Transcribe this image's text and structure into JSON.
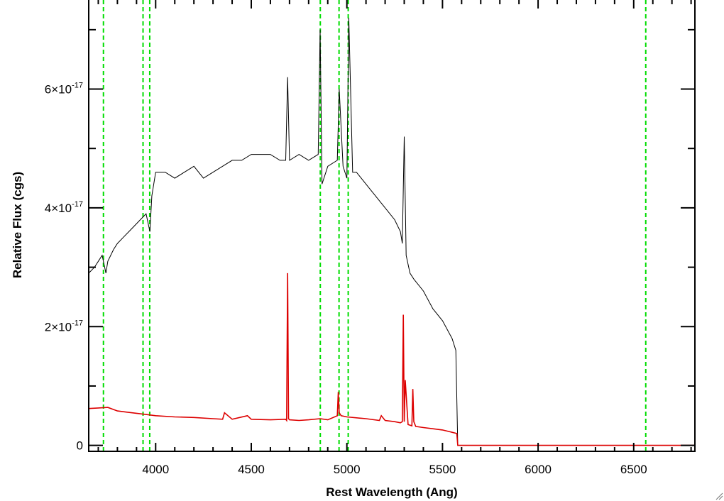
{
  "chart_data": {
    "type": "line",
    "title": "",
    "xlabel": "Rest Wavelength (Ang)",
    "ylabel": "Relative Flux (cgs)",
    "xlim": [
      3650,
      6820
    ],
    "ylim": [
      -1e-18,
      7.5e-17
    ],
    "x_ticks": [
      {
        "value": 4000,
        "label": "4000"
      },
      {
        "value": 4500,
        "label": "4500"
      },
      {
        "value": 5000,
        "label": "5000"
      },
      {
        "value": 5500,
        "label": "5500"
      },
      {
        "value": 6000,
        "label": "6000"
      },
      {
        "value": 6500,
        "label": "6500"
      }
    ],
    "y_ticks": [
      {
        "value": 0,
        "mantissa": "0",
        "exponent": ""
      },
      {
        "value": 2e-17,
        "mantissa": "2×10",
        "exponent": "-17"
      },
      {
        "value": 4e-17,
        "mantissa": "4×10",
        "exponent": "-17"
      },
      {
        "value": 6e-17,
        "mantissa": "6×10",
        "exponent": "-17"
      }
    ],
    "grid": false,
    "series": [
      {
        "color": "#000000",
        "x": [
          3650,
          3680,
          3700,
          3720,
          3740,
          3750,
          3780,
          3800,
          3830,
          3860,
          3890,
          3920,
          3950,
          3970,
          3980,
          4000,
          4050,
          4100,
          4150,
          4200,
          4250,
          4300,
          4350,
          4400,
          4450,
          4500,
          4550,
          4600,
          4650,
          4680,
          4690,
          4700,
          4750,
          4800,
          4850,
          4860,
          4870,
          4900,
          4950,
          4960,
          4980,
          5000,
          5010,
          5030,
          5050,
          5100,
          5150,
          5200,
          5250,
          5280,
          5290,
          5300,
          5310,
          5330,
          5350,
          5400,
          5450,
          5500,
          5550,
          5570,
          5580
        ],
        "y": [
          2.9e-17,
          3e-17,
          3.1e-17,
          3.2e-17,
          2.9e-17,
          3.1e-17,
          3.3e-17,
          3.4e-17,
          3.5e-17,
          3.6e-17,
          3.7e-17,
          3.8e-17,
          3.9e-17,
          3.6e-17,
          4.2e-17,
          4.6e-17,
          4.6e-17,
          4.5e-17,
          4.6e-17,
          4.7e-17,
          4.5e-17,
          4.6e-17,
          4.7e-17,
          4.8e-17,
          4.8e-17,
          4.9e-17,
          4.9e-17,
          4.9e-17,
          4.8e-17,
          4.8e-17,
          6.2e-17,
          4.8e-17,
          4.9e-17,
          4.8e-17,
          4.9e-17,
          7e-17,
          4.4e-17,
          4.7e-17,
          4.8e-17,
          6e-17,
          4.7e-17,
          4.5e-17,
          7.2e-17,
          4.6e-17,
          4.6e-17,
          4.4e-17,
          4.2e-17,
          4e-17,
          3.8e-17,
          3.6e-17,
          3.4e-17,
          5.2e-17,
          3.2e-17,
          2.9e-17,
          2.8e-17,
          2.6e-17,
          2.3e-17,
          2.1e-17,
          1.8e-17,
          1.6e-17,
          0
        ]
      },
      {
        "color": "#dd0000",
        "x": [
          3650,
          3700,
          3750,
          3800,
          3850,
          3900,
          3950,
          4000,
          4100,
          4200,
          4300,
          4350,
          4360,
          4400,
          4480,
          4500,
          4600,
          4680,
          4685,
          4690,
          4695,
          4700,
          4750,
          4800,
          4860,
          4900,
          4950,
          4955,
          4960,
          4970,
          5000,
          5100,
          5170,
          5180,
          5200,
          5250,
          5280,
          5290,
          5295,
          5300,
          5305,
          5320,
          5340,
          5345,
          5350,
          5360,
          5400,
          5450,
          5500,
          5550,
          5575,
          5580,
          5600,
          6000,
          6500,
          6820
        ],
        "y": [
          6.2e-18,
          6.3e-18,
          6.4e-18,
          5.8e-18,
          5.6e-18,
          5.4e-18,
          5.2e-18,
          5e-18,
          4.8e-18,
          4.7e-18,
          4.5e-18,
          4.4e-18,
          5.5e-18,
          4.4e-18,
          5e-18,
          4.4e-18,
          4.3e-18,
          4.4e-18,
          4.2e-18,
          2.9e-17,
          4.5e-18,
          4.3e-18,
          4.2e-18,
          4.3e-18,
          4.5e-18,
          4.3e-18,
          5e-18,
          9e-18,
          5.5e-18,
          5e-18,
          4.8e-18,
          4.5e-18,
          4.2e-18,
          5e-18,
          4.2e-18,
          4e-18,
          3.8e-18,
          4e-18,
          2.2e-17,
          4e-18,
          1.1e-17,
          3.5e-18,
          3.3e-18,
          9.5e-18,
          4e-18,
          3.2e-18,
          3e-18,
          2.8e-18,
          2.6e-18,
          2.2e-18,
          2e-18,
          0,
          0,
          0,
          0,
          0
        ]
      }
    ],
    "vlines": [
      {
        "x": 3727,
        "color": "#00dd00",
        "style": "dashed"
      },
      {
        "x": 3934,
        "color": "#00dd00",
        "style": "dashed"
      },
      {
        "x": 3969,
        "color": "#00dd00",
        "style": "dashed"
      },
      {
        "x": 4861,
        "color": "#00dd00",
        "style": "dashed"
      },
      {
        "x": 4959,
        "color": "#00dd00",
        "style": "dashed"
      },
      {
        "x": 5007,
        "color": "#00dd00",
        "style": "dashed"
      },
      {
        "x": 6563,
        "color": "#00dd00",
        "style": "dashed"
      }
    ]
  }
}
